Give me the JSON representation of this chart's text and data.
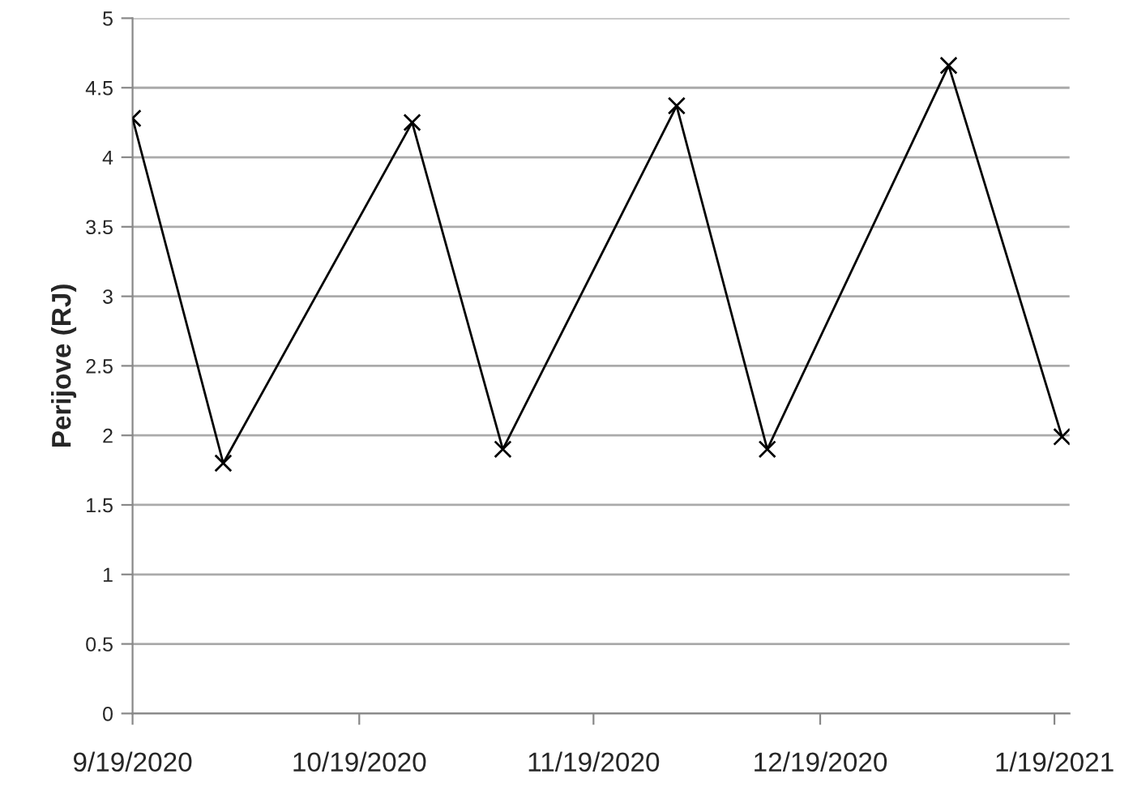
{
  "chart_data": {
    "type": "line",
    "ylabel": "Perijove (RJ)",
    "x": [
      "2020-09-19",
      "2020-10-01",
      "2020-10-26",
      "2020-11-07",
      "2020-11-30",
      "2020-12-12",
      "2021-01-05",
      "2021-01-20"
    ],
    "series": [
      {
        "color": "#000000",
        "values": [
          4.28,
          1.8,
          4.25,
          1.9,
          4.37,
          1.9,
          4.66,
          1.99
        ]
      }
    ],
    "xlim": [
      "2020-09-19",
      "2021-01-21"
    ],
    "xticks": [
      {
        "value": "2020-09-19",
        "label": "9/19/2020"
      },
      {
        "value": "2020-10-19",
        "label": "10/19/2020"
      },
      {
        "value": "2020-11-19",
        "label": "11/19/2020"
      },
      {
        "value": "2020-12-19",
        "label": "12/19/2020"
      },
      {
        "value": "2021-01-19",
        "label": "1/19/2021"
      }
    ],
    "ylim": [
      0,
      5
    ],
    "yticks": [
      0,
      0.5,
      1,
      1.5,
      2,
      2.5,
      3,
      3.5,
      4,
      4.5,
      5
    ],
    "grid": "y",
    "marker": "cross",
    "line_style": "solid",
    "legend": false
  }
}
